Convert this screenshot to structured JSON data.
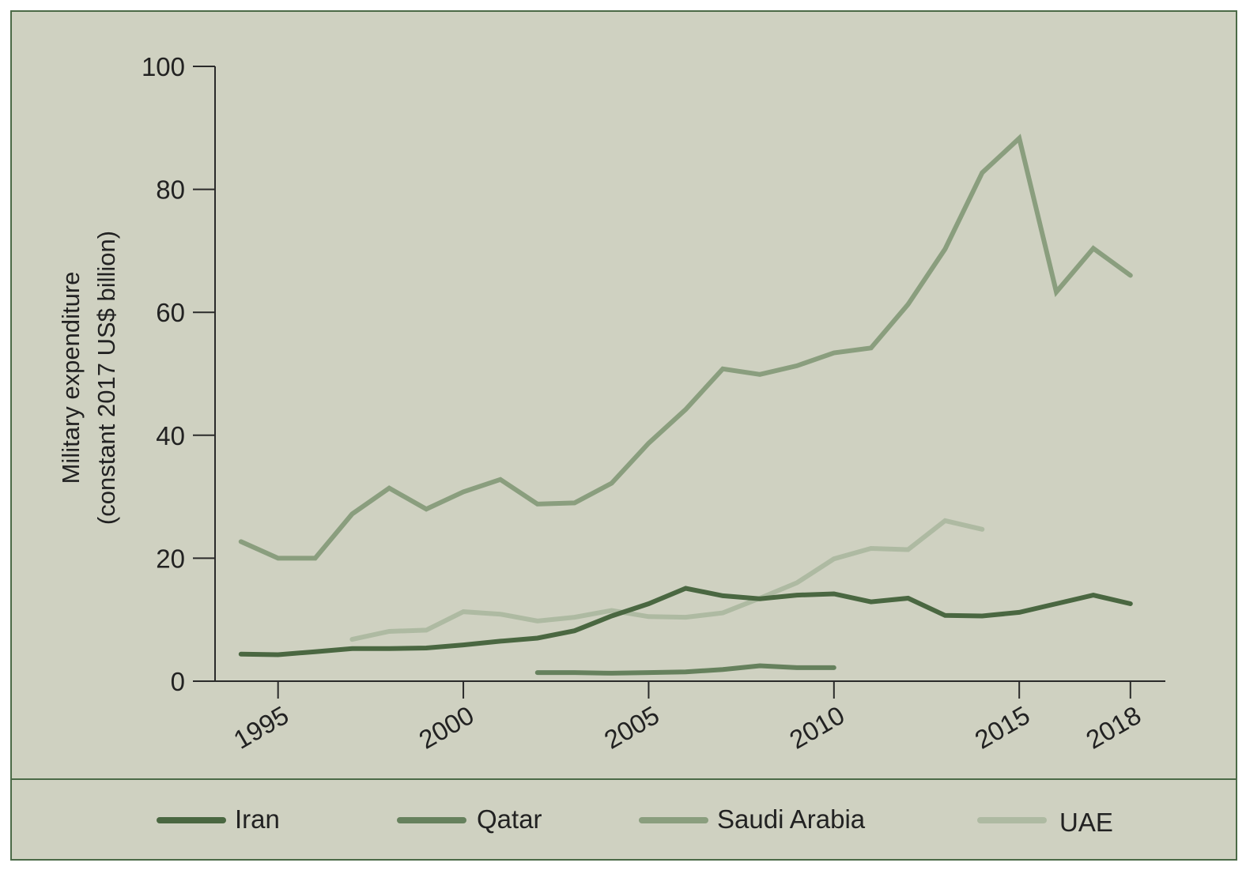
{
  "chart_data": {
    "type": "line",
    "ylabel_line1": "Military expenditure",
    "ylabel_line2": "(constant 2017 US$ billion)",
    "xlim": [
      1993.3,
      2018.9
    ],
    "ylim": [
      0,
      100
    ],
    "yticks": [
      0,
      20,
      40,
      60,
      80,
      100
    ],
    "ytick_labels": [
      "0",
      "20",
      "40",
      "60",
      "80",
      "100"
    ],
    "xticks": [
      1995,
      2000,
      2005,
      2010,
      2015,
      2018
    ],
    "xtick_labels": [
      "1995",
      "2000",
      "2005",
      "2010",
      "2015",
      "2018"
    ],
    "grid": false,
    "legend_position": "bottom",
    "series": [
      {
        "name": "Iran",
        "color": "#4a6741",
        "x": [
          1994,
          1995,
          1996,
          1997,
          1998,
          1999,
          2000,
          2001,
          2002,
          2003,
          2004,
          2005,
          2006,
          2007,
          2008,
          2009,
          2010,
          2011,
          2012,
          2013,
          2014,
          2015,
          2016,
          2017,
          2018
        ],
        "values": [
          4.4,
          4.3,
          4.8,
          5.3,
          5.3,
          5.4,
          5.9,
          6.5,
          7.0,
          8.2,
          10.6,
          12.6,
          15.1,
          13.9,
          13.4,
          14.0,
          14.2,
          12.9,
          13.5,
          10.7,
          10.6,
          11.2,
          12.6,
          14.0,
          12.6
        ]
      },
      {
        "name": "Qatar",
        "color": "#66815d",
        "x": [
          2002,
          2003,
          2004,
          2005,
          2006,
          2007,
          2008,
          2009,
          2010
        ],
        "values": [
          1.4,
          1.4,
          1.3,
          1.4,
          1.5,
          1.9,
          2.5,
          2.2,
          2.2
        ]
      },
      {
        "name": "Saudi Arabia",
        "color": "#8a9e7e",
        "x": [
          1994,
          1995,
          1996,
          1997,
          1998,
          1999,
          2000,
          2001,
          2002,
          2003,
          2004,
          2005,
          2006,
          2007,
          2008,
          2009,
          2010,
          2011,
          2012,
          2013,
          2014,
          2015,
          2016,
          2017,
          2018
        ],
        "values": [
          22.7,
          20.0,
          20.0,
          27.2,
          31.4,
          28.0,
          30.8,
          32.8,
          28.8,
          29.0,
          32.2,
          38.7,
          44.2,
          50.8,
          49.9,
          51.3,
          53.4,
          54.2,
          61.3,
          70.3,
          82.7,
          88.3,
          63.3,
          70.4,
          66.0
        ]
      },
      {
        "name": "UAE",
        "color": "#aebaa2",
        "x": [
          1997,
          1998,
          1999,
          2000,
          2001,
          2002,
          2003,
          2004,
          2005,
          2006,
          2007,
          2008,
          2009,
          2010,
          2011,
          2012,
          2013,
          2014
        ],
        "values": [
          6.8,
          8.1,
          8.3,
          11.3,
          10.9,
          9.8,
          10.4,
          11.5,
          10.5,
          10.4,
          11.1,
          13.5,
          16.0,
          19.9,
          21.6,
          21.4,
          26.1,
          24.7
        ]
      }
    ],
    "colors": {
      "background": "#cfd1c1",
      "frame": "#4b6a47",
      "axis": "#2a2a2a",
      "text": "#222222"
    }
  }
}
